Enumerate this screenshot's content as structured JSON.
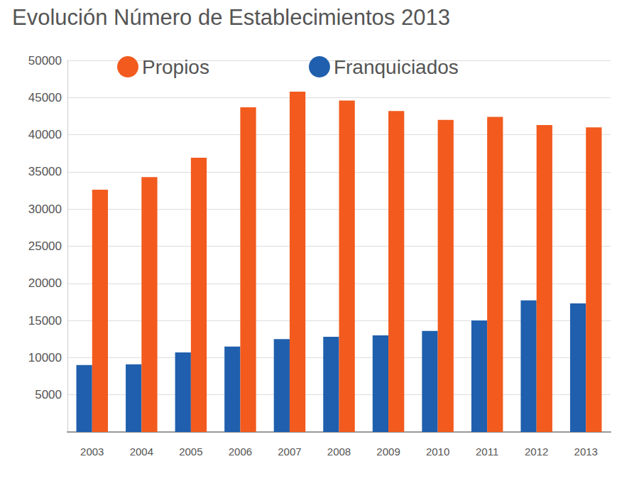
{
  "chart_data": {
    "type": "bar",
    "title": "Evolución Número de Establecimientos 2013",
    "categories": [
      "2003",
      "2004",
      "2005",
      "2006",
      "2007",
      "2008",
      "2009",
      "2010",
      "2011",
      "2012",
      "2013"
    ],
    "series": [
      {
        "name": "Franquiciados",
        "color": "#1f5fad",
        "values": [
          9000,
          9100,
          10700,
          11500,
          12500,
          12800,
          13000,
          13600,
          15000,
          17700,
          17300
        ]
      },
      {
        "name": "Propios",
        "color": "#f25a1e",
        "values": [
          32600,
          34300,
          36900,
          43700,
          45800,
          44600,
          43200,
          42000,
          42400,
          41300,
          41000
        ]
      }
    ],
    "ylim": [
      0,
      50000
    ],
    "yticks": [
      5000,
      10000,
      15000,
      20000,
      25000,
      30000,
      35000,
      40000,
      45000,
      50000
    ],
    "grid": true,
    "legend": "top"
  }
}
